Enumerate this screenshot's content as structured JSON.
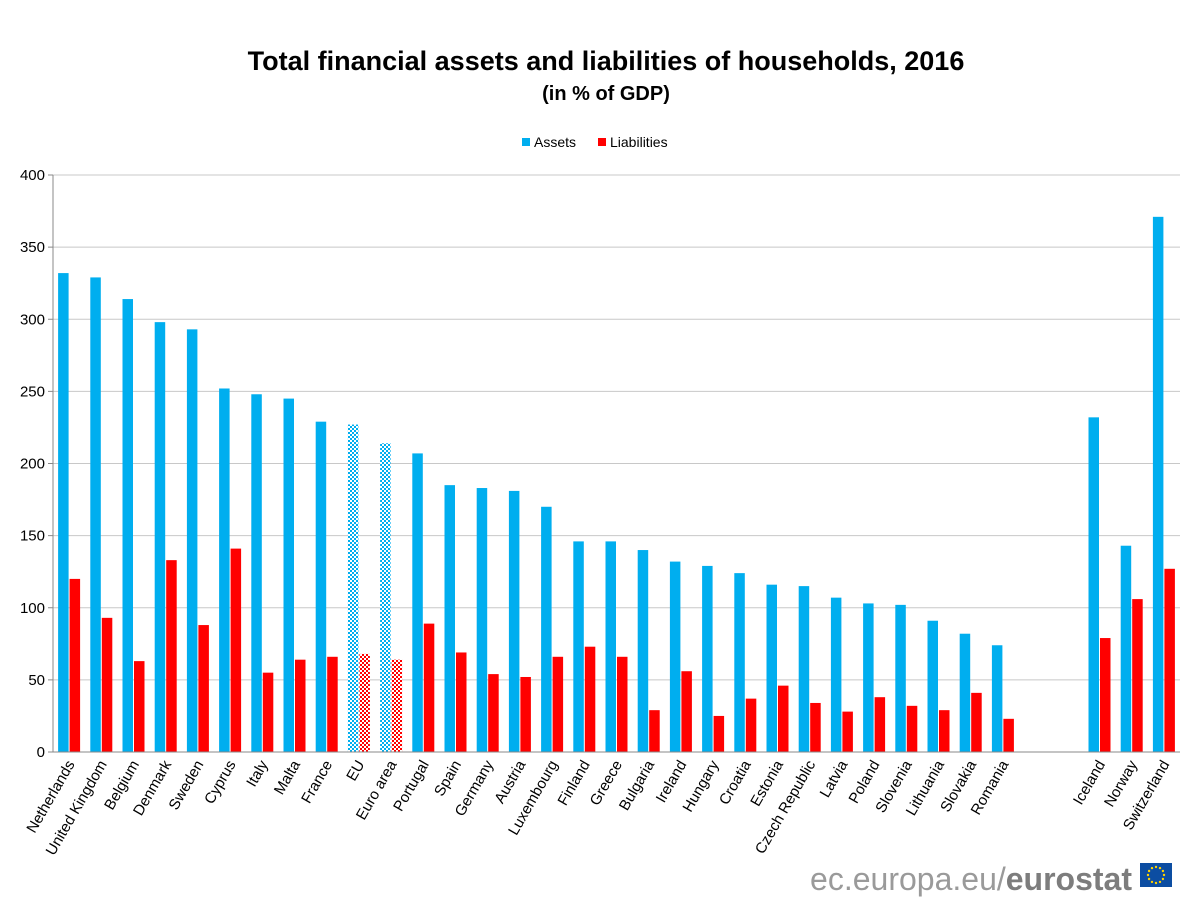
{
  "chart_data": {
    "type": "bar",
    "title": "Total financial assets and liabilities of households, 2016",
    "subtitle": "(in % of GDP)",
    "xlabel": "",
    "ylabel": "",
    "ylim": [
      0,
      400
    ],
    "yticks": [
      0,
      50,
      100,
      150,
      200,
      250,
      300,
      350,
      400
    ],
    "grid": true,
    "legend_position": "top-center",
    "categories": [
      "Netherlands",
      "United Kingdom",
      "Belgium",
      "Denmark",
      "Sweden",
      "Cyprus",
      "Italy",
      "Malta",
      "France",
      "EU",
      "Euro area",
      "Portugal",
      "Spain",
      "Germany",
      "Austria",
      "Luxembourg",
      "Finland",
      "Greece",
      "Bulgaria",
      "Ireland",
      "Hungary",
      "Croatia",
      "Estonia",
      "Czech Republic",
      "Latvia",
      "Poland",
      "Slovenia",
      "Lithuania",
      "Slovakia",
      "Romania",
      "Iceland",
      "Norway",
      "Switzerland"
    ],
    "highlighted_categories": [
      "EU",
      "Euro area"
    ],
    "gap_after_category": "Romania",
    "series": [
      {
        "name": "Assets",
        "color": "#00aeef",
        "values": [
          332,
          329,
          314,
          298,
          293,
          252,
          248,
          245,
          229,
          227,
          214,
          207,
          185,
          183,
          181,
          170,
          146,
          146,
          140,
          132,
          129,
          124,
          116,
          115,
          107,
          103,
          102,
          91,
          82,
          74,
          232,
          143,
          371
        ]
      },
      {
        "name": "Liabilities",
        "color": "#ff0000",
        "values": [
          120,
          93,
          63,
          133,
          88,
          141,
          55,
          64,
          66,
          68,
          64,
          89,
          69,
          54,
          52,
          66,
          73,
          66,
          29,
          56,
          25,
          37,
          46,
          34,
          28,
          38,
          32,
          29,
          41,
          23,
          79,
          106,
          127
        ]
      }
    ]
  },
  "footer": {
    "site": "ec.europa.eu/",
    "brand": "eurostat"
  },
  "colors": {
    "flag_blue": "#0c4da2",
    "flag_star": "#ffd200"
  }
}
